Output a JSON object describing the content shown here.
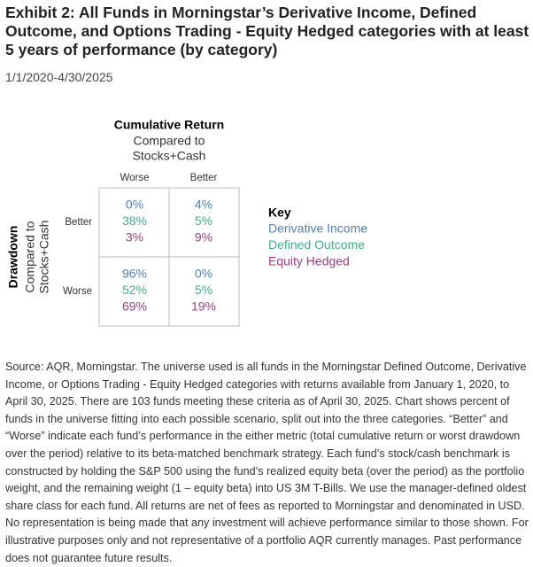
{
  "header": {
    "title": "Exhibit 2: All Funds in Morningstar’s Derivative Income, Defined Outcome, and Options Trading - Equity Hedged categories with at least 5 years of performance (by category)",
    "subtitle": "1/1/2020-4/30/2025"
  },
  "matrix": {
    "x_title": "Cumulative Return",
    "x_subtitle_lines": [
      "Compared to",
      "Stocks+Cash"
    ],
    "x_labels": [
      "Worse",
      "Better"
    ],
    "y_title": "Drawdown",
    "y_subtitle_lines": [
      "Compared to",
      "Stocks+Cash"
    ],
    "y_labels": [
      "Better",
      "Worse"
    ],
    "cells": [
      [
        [
          "0%",
          "38%",
          "3%"
        ],
        [
          "4%",
          "5%",
          "9%"
        ]
      ],
      [
        [
          "96%",
          "52%",
          "69%"
        ],
        [
          "0%",
          "5%",
          "19%"
        ]
      ]
    ]
  },
  "key": {
    "title": "Key",
    "series": [
      {
        "name": "Derivative Income",
        "color": "#4f7fb3"
      },
      {
        "name": "Defined Outcome",
        "color": "#3fae8c"
      },
      {
        "name": "Equity Hedged",
        "color": "#9b3f80"
      }
    ]
  },
  "source": "Source: AQR, Morningstar. The universe used is all funds in the Morningstar Defined Outcome, Derivative Income, or Options Trading - Equity Hedged categories with returns available from January 1, 2020, to April 30, 2025. There are 103 funds meeting these criteria as of April 30, 2025. Chart shows percent of funds in the universe fitting into each possible scenario, split out into the three categories. “Better” and “Worse” indicate each fund’s performance in the either metric (total cumulative return or worst drawdown over the period) relative to its beta-matched benchmark strategy. Each fund’s stock/cash benchmark is constructed by holding the S&P 500 using the fund’s realized equity beta (over the period) as the portfolio weight, and the remaining weight (1 – equity beta) into US 3M T-Bills. We use the manager-defined oldest share class for each fund. All returns are net of fees as reported to Morningstar and denominated in USD. No representation is being made that any investment will achieve performance similar to those shown. For illustrative purposes only and not representative of a portfolio AQR currently manages. Past performance does not guarantee future results."
}
